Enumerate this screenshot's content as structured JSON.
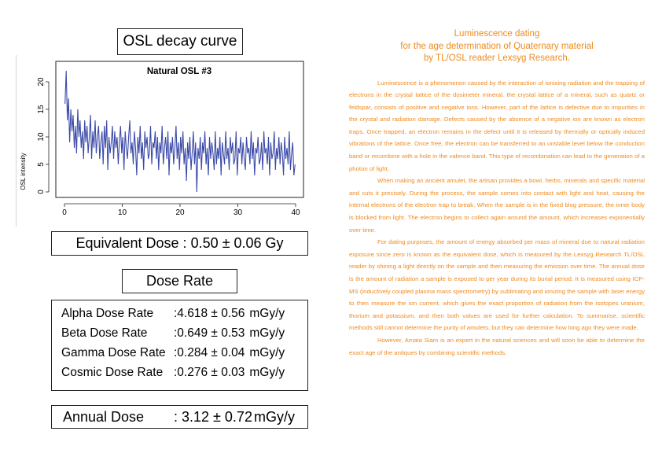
{
  "osl_section": {
    "title": "OSL decay curve",
    "plot_title": "Natural OSL #3",
    "ylabel": "OSL intensity"
  },
  "equivalent_dose": {
    "label": "Equivalent Dose :",
    "value": "0.50 ± 0.06 Gy"
  },
  "dose_rate_section": {
    "title": "Dose Rate",
    "rows": [
      {
        "label": "Alpha Dose Rate",
        "value": ":4.618 ± 0.56",
        "unit": "mGy/y"
      },
      {
        "label": "Beta Dose Rate",
        "value": ":0.649 ± 0.53",
        "unit": "mGy/y"
      },
      {
        "label": "Gamma Dose Rate",
        "value": ":0.284 ± 0.04",
        "unit": "mGy/y"
      },
      {
        "label": "Cosmic Dose Rate",
        "value": ":0.276 ± 0.03",
        "unit": "mGy/y"
      }
    ]
  },
  "annual_dose": {
    "label": "Annual Dose",
    "value": ": 3.12 ± 0.72",
    "unit": "mGy/y"
  },
  "article": {
    "heading_lines": [
      "Luminescence dating",
      "for the age determination of Quaternary material",
      "by TL/OSL reader Lexsyg Research."
    ],
    "paragraphs": [
      "Luminescence is a phenomenon caused by the interaction of ionising radiation and the trapping of electrons in the crystal lattice of the dosimeter mineral. the crystal lattice of a mineral, such as quartz or feldspar, consists of positive and negative ions. However, part of the lattice is defective due to impurities in the crystal and radiation damage. Defects caused by the absence of a negative ion are known as electron traps. Once trapped, an electron remains in the defect until it is released by thermally or optically induced vibrations of the lattice. Once free, the electron can be transferred to an unstable level below the conduction band or recombine with a hole in the valence band. This type of recombination can lead to the generation of a photon of light.",
      "When making an ancient amulet, the artisan provides a bowl, herbs, minerals and specific material and cuts it precisely. During the process, the sample comes into contact with light and heat, causing the internal electrons of the electron trap to break. When the sample is in the fixed blog pressure, the inner body is blocked from light. The electron begins to collect again around the amount, which increases exponentially over time.",
      "For dating purposes, the amount of energy absorbed per mass of mineral due to natural radiation exposure since zero is known as the equivalent dose, which is measured by the Lexsyg Research TL/OSL reader by shining a light directly on the sample and then measuring the emission over time. The annual dose is the amount of radiation a sample is exposed to per year during its burial period. It is measured using ICP-MS (inductively coupled plasma mass spectrometry) by sublimating and ionizing the sample with laser energy to then measure the ion current, which gives the exact proportion of radiation from the isotopes uranium, thorium and potassium, and then both values are used for further calculation. To summarise, scientific methods still cannot determine the purity of amulets, but they can determine how long ago they were made.",
      "However, Amata Siam is an expert in the natural sciences and will soon be able to determine the exact age of the antiques by combining scientific methods."
    ]
  },
  "chart_data": {
    "type": "line",
    "title": "Natural OSL #3",
    "xlabel": "",
    "ylabel": "OSL intensity",
    "xlim": [
      0,
      40
    ],
    "ylim": [
      0,
      22
    ],
    "xticks": [
      0,
      10,
      20,
      30,
      40
    ],
    "yticks": [
      0,
      5,
      10,
      15,
      20
    ],
    "grid": false,
    "color": "#3b4aa8",
    "series": [
      {
        "x": [
          0.1,
          0.3,
          0.5,
          0.7,
          0.9,
          1.1,
          1.3,
          1.5,
          1.7,
          1.9,
          2.1,
          2.3,
          2.5,
          2.7,
          2.9,
          3.1,
          3.3,
          3.5,
          3.7,
          3.9,
          4.1,
          4.3,
          4.5,
          4.7,
          4.9,
          5.1,
          5.3,
          5.5,
          5.7,
          5.9,
          6.1,
          6.3,
          6.5,
          6.7,
          6.9,
          7.1,
          7.3,
          7.5,
          7.7,
          7.9,
          8.1,
          8.3,
          8.5,
          8.7,
          8.9,
          9.1,
          9.3,
          9.5,
          9.7,
          9.9,
          10.1,
          10.3,
          10.5,
          10.7,
          10.9,
          11.1,
          11.3,
          11.5,
          11.7,
          11.9,
          12.1,
          12.3,
          12.5,
          12.7,
          12.9,
          13.1,
          13.3,
          13.5,
          13.7,
          13.9,
          14.1,
          14.3,
          14.5,
          14.7,
          14.9,
          15.1,
          15.3,
          15.5,
          15.7,
          15.9,
          16.1,
          16.3,
          16.5,
          16.7,
          16.9,
          17.1,
          17.3,
          17.5,
          17.7,
          17.9,
          18.1,
          18.3,
          18.5,
          18.7,
          18.9,
          19.1,
          19.3,
          19.5,
          19.7,
          19.9,
          20.1,
          20.3,
          20.5,
          20.7,
          20.9,
          21.1,
          21.3,
          21.5,
          21.7,
          21.9,
          22.1,
          22.3,
          22.5,
          22.7,
          22.9,
          23.1,
          23.3,
          23.5,
          23.7,
          23.9,
          24.1,
          24.3,
          24.5,
          24.7,
          24.9,
          25.1,
          25.3,
          25.5,
          25.7,
          25.9,
          26.1,
          26.3,
          26.5,
          26.7,
          26.9,
          27.1,
          27.3,
          27.5,
          27.7,
          27.9,
          28.1,
          28.3,
          28.5,
          28.7,
          28.9,
          29.1,
          29.3,
          29.5,
          29.7,
          29.9,
          30.1,
          30.3,
          30.5,
          30.7,
          30.9,
          31.1,
          31.3,
          31.5,
          31.7,
          31.9,
          32.1,
          32.3,
          32.5,
          32.7,
          32.9,
          33.1,
          33.3,
          33.5,
          33.7,
          33.9,
          34.1,
          34.3,
          34.5,
          34.7,
          34.9,
          35.1,
          35.3,
          35.5,
          35.7,
          35.9,
          36.1,
          36.3,
          36.5,
          36.7,
          36.9,
          37.1,
          37.3,
          37.5,
          37.7,
          37.9,
          38.1,
          38.3,
          38.5,
          38.7,
          38.9,
          39.1,
          39.3,
          39.5,
          39.7,
          39.9
        ],
        "y": [
          16,
          22,
          13,
          17,
          9,
          15,
          11,
          14,
          8,
          12,
          7,
          15,
          10,
          13,
          8,
          11,
          6,
          13,
          9,
          12,
          7,
          10,
          14,
          6,
          11,
          8,
          13,
          7,
          10,
          12,
          6,
          9,
          11,
          5,
          12,
          8,
          13,
          4,
          10,
          7,
          9,
          12,
          6,
          11,
          8,
          10,
          5,
          9,
          12,
          7,
          10,
          4,
          11,
          8,
          6,
          10,
          13,
          7,
          9,
          5,
          11,
          8,
          3,
          10,
          7,
          12,
          6,
          9,
          4,
          11,
          8,
          10,
          6,
          7,
          12,
          5,
          9,
          8,
          11,
          6,
          10,
          4,
          9,
          7,
          12,
          5,
          8,
          10,
          6,
          11,
          3,
          9,
          7,
          10,
          5,
          8,
          12,
          6,
          9,
          4,
          10,
          7,
          11,
          5,
          8,
          2,
          9,
          6,
          10,
          4,
          7,
          11,
          5,
          9,
          0,
          8,
          6,
          10,
          4,
          9,
          7,
          11,
          5,
          8,
          3,
          10,
          6,
          9,
          7,
          4,
          11,
          5,
          8,
          6,
          10,
          3,
          9,
          7,
          5,
          11,
          6,
          8,
          4,
          10,
          7,
          9,
          5,
          6,
          11,
          3,
          8,
          7,
          10,
          5,
          9,
          6,
          4,
          10,
          7,
          8,
          5,
          11,
          6,
          9,
          3,
          8,
          7,
          10,
          5,
          6,
          9,
          4,
          11,
          7,
          8,
          5,
          10,
          3,
          9,
          6,
          7,
          11,
          4,
          8,
          6,
          10,
          5,
          9,
          7,
          3,
          10,
          6,
          8,
          5,
          11,
          4,
          7,
          9,
          3,
          5
        ]
      }
    ]
  }
}
